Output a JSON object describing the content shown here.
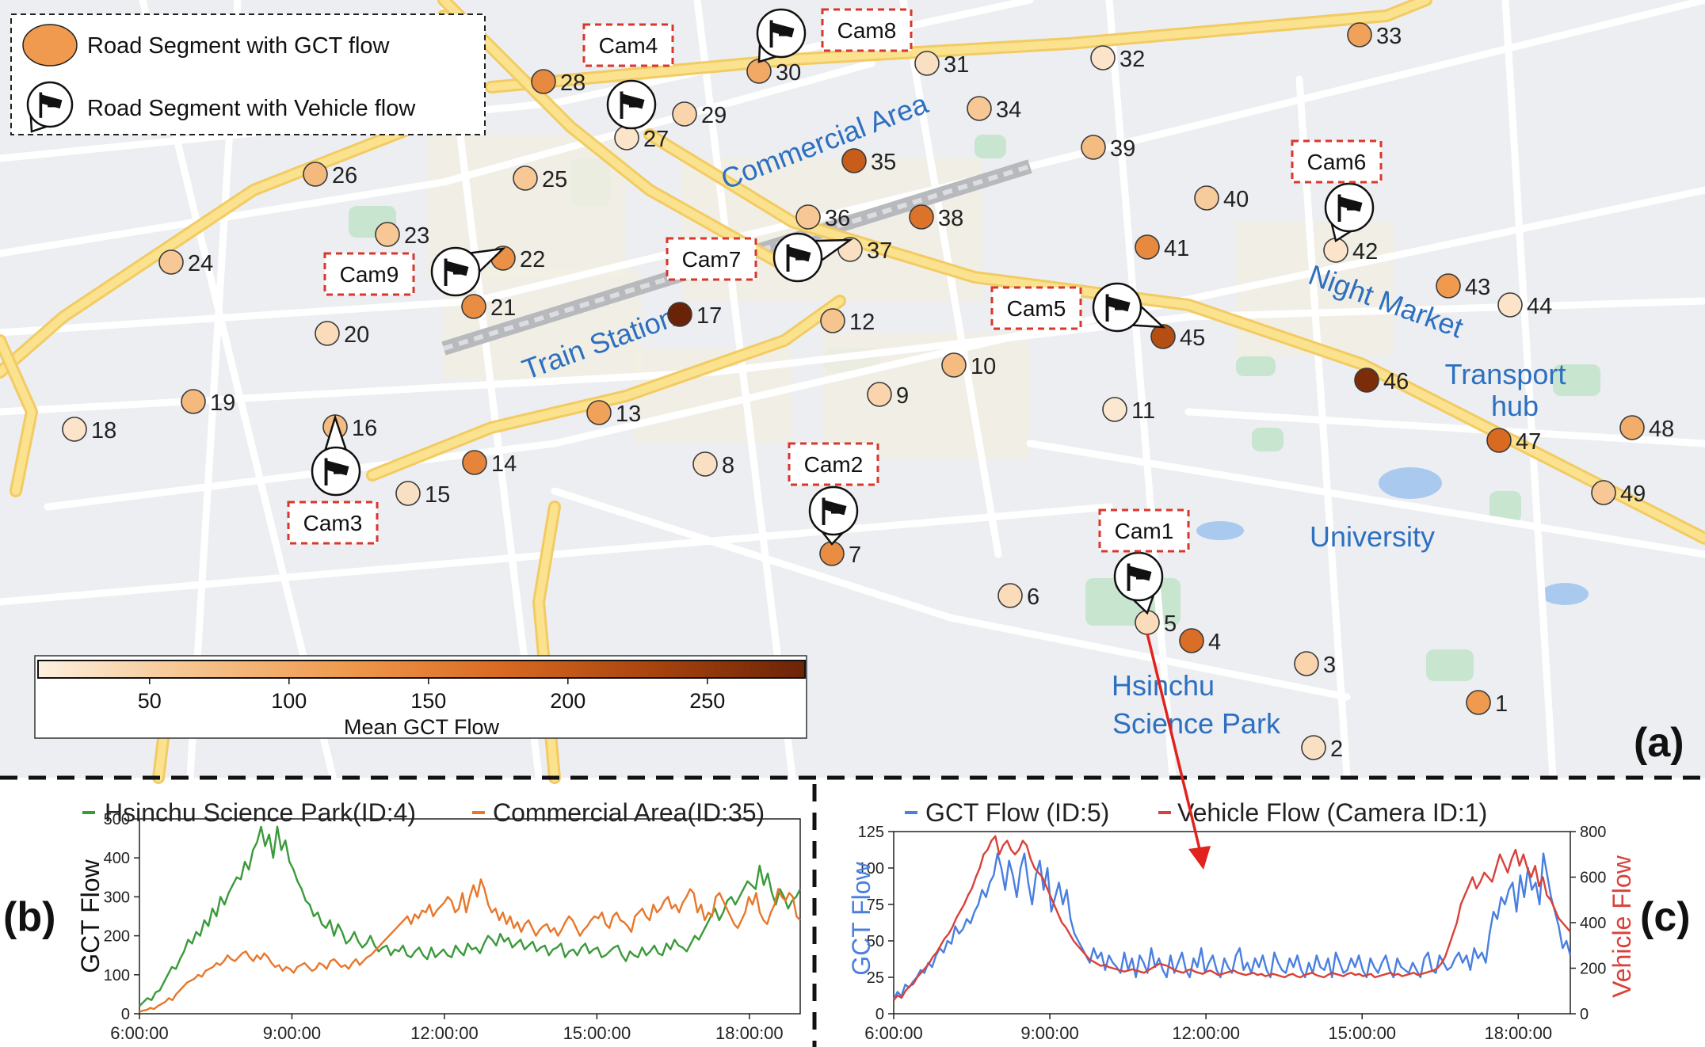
{
  "panel_letters": {
    "a": "(a)",
    "b": "(b)",
    "c": "(c)"
  },
  "map": {
    "legend": {
      "gct_label": "Road Segment with GCT flow",
      "vehicle_label": "Road Segment with Vehicle flow"
    },
    "colorbar": {
      "title": "Mean GCT Flow",
      "range": [
        10,
        285
      ],
      "ticks": [
        50,
        100,
        150,
        200,
        250
      ],
      "colors": [
        "#fdf0e0",
        "#f6c48e",
        "#ef9a4e",
        "#d96a22",
        "#a8440e",
        "#6b2307"
      ]
    },
    "areas": [
      {
        "name": "Commercial Area",
        "rotate": -21
      },
      {
        "name": "Train Station",
        "rotate": -20
      },
      {
        "name": "Night Market",
        "rotate": 20
      },
      {
        "name": "Transport",
        "rotate": 0
      },
      {
        "name": "hub",
        "rotate": 0
      },
      {
        "name": "University",
        "rotate": 0
      },
      {
        "name": "Hsinchu",
        "rotate": 0
      },
      {
        "name": "Science Park",
        "rotate": 0
      }
    ],
    "segments": [
      {
        "id": "1",
        "flow": 120
      },
      {
        "id": "2",
        "flow": 30
      },
      {
        "id": "3",
        "flow": 45
      },
      {
        "id": "4",
        "flow": 170
      },
      {
        "id": "5",
        "flow": 35
      },
      {
        "id": "6",
        "flow": 35
      },
      {
        "id": "7",
        "flow": 135
      },
      {
        "id": "8",
        "flow": 30
      },
      {
        "id": "9",
        "flow": 45
      },
      {
        "id": "10",
        "flow": 75
      },
      {
        "id": "11",
        "flow": 20
      },
      {
        "id": "12",
        "flow": 65
      },
      {
        "id": "13",
        "flow": 110
      },
      {
        "id": "14",
        "flow": 145
      },
      {
        "id": "15",
        "flow": 30
      },
      {
        "id": "16",
        "flow": 75
      },
      {
        "id": "17",
        "flow": 285
      },
      {
        "id": "18",
        "flow": 25
      },
      {
        "id": "19",
        "flow": 80
      },
      {
        "id": "20",
        "flow": 35
      },
      {
        "id": "21",
        "flow": 135
      },
      {
        "id": "22",
        "flow": 130
      },
      {
        "id": "23",
        "flow": 60
      },
      {
        "id": "24",
        "flow": 60
      },
      {
        "id": "25",
        "flow": 60
      },
      {
        "id": "26",
        "flow": 80
      },
      {
        "id": "27",
        "flow": 25
      },
      {
        "id": "28",
        "flow": 140
      },
      {
        "id": "29",
        "flow": 45
      },
      {
        "id": "30",
        "flow": 100
      },
      {
        "id": "31",
        "flow": 30
      },
      {
        "id": "32",
        "flow": 25
      },
      {
        "id": "33",
        "flow": 110
      },
      {
        "id": "34",
        "flow": 60
      },
      {
        "id": "35",
        "flow": 195
      },
      {
        "id": "36",
        "flow": 60
      },
      {
        "id": "37",
        "flow": 30
      },
      {
        "id": "38",
        "flow": 165
      },
      {
        "id": "39",
        "flow": 75
      },
      {
        "id": "40",
        "flow": 55
      },
      {
        "id": "41",
        "flow": 140
      },
      {
        "id": "42",
        "flow": 25
      },
      {
        "id": "43",
        "flow": 120
      },
      {
        "id": "44",
        "flow": 25
      },
      {
        "id": "45",
        "flow": 215
      },
      {
        "id": "46",
        "flow": 270
      },
      {
        "id": "47",
        "flow": 175
      },
      {
        "id": "48",
        "flow": 95
      },
      {
        "id": "49",
        "flow": 60
      }
    ],
    "cameras": [
      {
        "id": "Cam1",
        "segment": "5"
      },
      {
        "id": "Cam2",
        "segment": "7"
      },
      {
        "id": "Cam3",
        "segment": "16"
      },
      {
        "id": "Cam4",
        "segment": "27"
      },
      {
        "id": "Cam5",
        "segment": "45"
      },
      {
        "id": "Cam6",
        "segment": "42"
      },
      {
        "id": "Cam7",
        "segment": "37"
      },
      {
        "id": "Cam8",
        "segment": "30"
      },
      {
        "id": "Cam9",
        "segment": "22"
      }
    ],
    "link": {
      "from": "5",
      "to": "panel-c"
    }
  },
  "chart_data": [
    {
      "type": "line",
      "panel": "b",
      "title": "",
      "xlabel": "",
      "ylabel": "GCT Flow",
      "xlim": [
        "6:00:00",
        "19:00:00"
      ],
      "ylim": [
        0,
        500
      ],
      "x_ticks": [
        "6:00:00",
        "9:00:00",
        "12:00:00",
        "15:00:00",
        "18:00:00"
      ],
      "y_ticks": [
        0,
        100,
        200,
        300,
        400,
        500
      ],
      "grid": false,
      "legend_position": "top",
      "sample_interval_min": 5,
      "series": [
        {
          "name": "Hsinchu Science Park(ID:4)",
          "color": "#3a9a3a",
          "values": [
            20,
            30,
            40,
            35,
            55,
            60,
            80,
            100,
            120,
            115,
            140,
            160,
            190,
            180,
            210,
            200,
            240,
            225,
            270,
            250,
            300,
            280,
            310,
            330,
            350,
            345,
            390,
            370,
            420,
            440,
            480,
            430,
            460,
            400,
            480,
            420,
            445,
            390,
            370,
            340,
            320,
            290,
            280,
            250,
            260,
            230,
            220,
            240,
            200,
            230,
            210,
            180,
            190,
            210,
            185,
            170,
            180,
            200,
            175,
            160,
            170,
            175,
            150,
            165,
            160,
            175,
            150,
            145,
            160,
            170,
            150,
            140,
            170,
            145,
            155,
            165,
            150,
            145,
            175,
            160,
            150,
            180,
            165,
            170,
            155,
            180,
            200,
            190,
            175,
            205,
            185,
            195,
            170,
            180,
            190,
            165,
            175,
            185,
            160,
            170,
            175,
            150,
            165,
            170,
            180,
            145,
            160,
            165,
            150,
            170,
            180,
            155,
            165,
            170,
            145,
            150,
            160,
            170,
            175,
            150,
            135,
            160,
            150,
            145,
            170,
            150,
            160,
            175,
            155,
            150,
            180,
            165,
            190,
            175,
            170,
            160,
            180,
            200,
            190,
            210,
            230,
            250,
            270,
            240,
            260,
            290,
            300,
            280,
            300,
            320,
            340,
            330,
            320,
            380,
            330,
            360,
            310,
            280,
            320,
            300,
            270,
            290,
            300,
            320
          ]
        },
        {
          "name": "Commercial Area(ID:35)",
          "color": "#e8772b",
          "values": [
            5,
            8,
            10,
            15,
            12,
            20,
            25,
            30,
            40,
            35,
            50,
            60,
            70,
            80,
            85,
            90,
            100,
            95,
            110,
            115,
            120,
            130,
            125,
            135,
            150,
            140,
            135,
            145,
            155,
            160,
            145,
            135,
            150,
            140,
            155,
            145,
            130,
            120,
            125,
            110,
            120,
            115,
            105,
            120,
            125,
            130,
            120,
            110,
            115,
            130,
            125,
            115,
            135,
            140,
            130,
            120,
            125,
            115,
            130,
            140,
            125,
            135,
            145,
            150,
            160,
            170,
            180,
            190,
            200,
            210,
            220,
            230,
            240,
            250,
            230,
            255,
            245,
            265,
            260,
            280,
            250,
            265,
            275,
            285,
            300,
            290,
            260,
            270,
            310,
            260,
            300,
            330,
            300,
            345,
            320,
            280,
            260,
            270,
            240,
            260,
            230,
            250,
            220,
            235,
            210,
            230,
            240,
            220,
            200,
            215,
            225,
            230,
            210,
            220,
            200,
            215,
            235,
            250,
            240,
            220,
            200,
            215,
            225,
            240,
            250,
            245,
            260,
            230,
            220,
            250,
            260,
            240,
            235,
            225,
            210,
            250,
            260,
            270,
            250,
            240,
            280,
            260,
            270,
            290,
            300,
            270,
            280,
            260,
            285,
            300,
            320,
            310,
            260,
            280,
            240,
            260,
            250,
            300,
            310,
            290,
            270,
            250,
            230,
            220,
            240,
            260,
            300,
            280,
            310,
            260,
            240,
            230,
            260,
            280,
            320,
            300,
            290,
            310,
            300,
            250,
            240
          ]
        }
      ]
    },
    {
      "type": "line",
      "panel": "c",
      "title": "",
      "xlabel": "",
      "ylabel": "GCT Flow",
      "y2label": "Vehicle Flow",
      "xlim": [
        "6:00:00",
        "19:00:00"
      ],
      "ylim": [
        0,
        125
      ],
      "y2lim": [
        0,
        800
      ],
      "x_ticks": [
        "6:00:00",
        "9:00:00",
        "12:00:00",
        "15:00:00",
        "18:00:00"
      ],
      "y_ticks": [
        0,
        25,
        50,
        75,
        100,
        125
      ],
      "y2_ticks": [
        0,
        200,
        400,
        600,
        800
      ],
      "grid": false,
      "legend_position": "top",
      "sample_interval_min": 5,
      "series": [
        {
          "name": "GCT Flow (ID:5)",
          "axis": "left",
          "color": "#4a7fe0",
          "values": [
            10,
            15,
            12,
            20,
            18,
            22,
            25,
            30,
            28,
            35,
            32,
            40,
            45,
            42,
            50,
            48,
            60,
            55,
            58,
            65,
            62,
            70,
            75,
            85,
            80,
            90,
            95,
            110,
            100,
            85,
            105,
            95,
            80,
            100,
            110,
            90,
            75,
            95,
            105,
            85,
            100,
            70,
            80,
            90,
            75,
            85,
            65,
            55,
            50,
            45,
            40,
            35,
            45,
            38,
            42,
            30,
            40,
            35,
            32,
            28,
            42,
            30,
            38,
            25,
            40,
            35,
            28,
            45,
            32,
            38,
            30,
            25,
            40,
            28,
            35,
            42,
            30,
            25,
            38,
            32,
            45,
            28,
            35,
            40,
            30,
            25,
            38,
            32,
            28,
            40,
            45,
            30,
            35,
            28,
            38,
            32,
            40,
            30,
            25,
            42,
            35,
            30,
            28,
            38,
            32,
            40,
            30,
            25,
            35,
            28,
            40,
            32,
            30,
            38,
            25,
            42,
            35,
            28,
            30,
            38,
            32,
            40,
            30,
            25,
            38,
            32,
            28,
            35,
            40,
            30,
            25,
            38,
            32,
            30,
            28,
            35,
            30,
            25,
            38,
            42,
            30,
            28,
            40,
            35,
            30,
            32,
            38,
            42,
            35,
            40,
            30,
            45,
            38,
            42,
            35,
            55,
            70,
            65,
            80,
            75,
            85,
            90,
            70,
            95,
            80,
            100,
            85,
            90,
            75,
            110,
            95,
            80,
            70,
            60,
            45,
            50,
            40
          ]
        },
        {
          "name": "Vehicle Flow (Camera ID:1)",
          "axis": "right",
          "color": "#d9413a",
          "values": [
            60,
            80,
            70,
            100,
            120,
            130,
            160,
            180,
            200,
            220,
            250,
            270,
            300,
            330,
            350,
            380,
            420,
            450,
            480,
            520,
            550,
            600,
            640,
            700,
            720,
            760,
            780,
            700,
            740,
            760,
            720,
            700,
            720,
            760,
            740,
            680,
            640,
            620,
            600,
            560,
            520,
            480,
            440,
            400,
            380,
            350,
            320,
            300,
            280,
            260,
            240,
            230,
            220,
            210,
            215,
            205,
            200,
            195,
            190,
            185,
            190,
            195,
            190,
            185,
            180,
            190,
            200,
            210,
            220,
            215,
            210,
            200,
            190,
            185,
            180,
            190,
            195,
            185,
            180,
            175,
            185,
            190,
            180,
            170,
            175,
            180,
            185,
            190,
            180,
            175,
            170,
            175,
            180,
            170,
            175,
            165,
            170,
            175,
            170,
            165,
            160,
            170,
            175,
            165,
            160,
            170,
            175,
            180,
            170,
            165,
            160,
            170,
            180,
            175,
            170,
            165,
            175,
            180,
            170,
            175,
            165,
            170,
            175,
            160,
            165,
            170,
            175,
            180,
            170,
            175,
            165,
            170,
            175,
            180,
            170,
            175,
            180,
            185,
            190,
            200,
            220,
            250,
            300,
            350,
            400,
            480,
            520,
            560,
            600,
            550,
            580,
            620,
            600,
            580,
            640,
            700,
            660,
            620,
            680,
            720,
            650,
            700,
            640,
            600,
            650,
            560,
            600,
            520,
            500,
            460,
            420,
            400,
            380,
            360
          ]
        }
      ]
    }
  ]
}
